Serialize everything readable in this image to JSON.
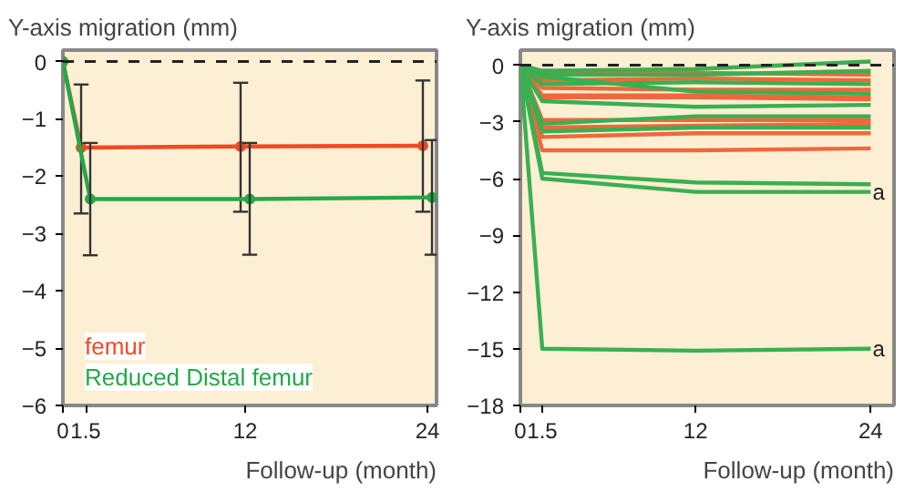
{
  "chart_data": [
    {
      "type": "line",
      "title": "Y-axis migration (mm)",
      "xlabel": "Follow-up (month)",
      "xlim": [
        0,
        24.6
      ],
      "ylim": [
        -6,
        0.2
      ],
      "xticks": [
        0,
        1.5,
        12,
        24
      ],
      "yticks": [
        {
          "value": -6,
          "label": "−6"
        },
        {
          "value": -5,
          "label": "−5"
        },
        {
          "value": -4,
          "label": "−4"
        },
        {
          "value": -3,
          "label": "−3"
        },
        {
          "value": -2,
          "label": "−2"
        },
        {
          "value": -1,
          "label": "−1"
        },
        0
      ],
      "grid": false,
      "marker": "circle",
      "legend": "bottom left",
      "ref_lines": [
        {
          "axis": "y",
          "value": 0,
          "color": "#222222",
          "line_style": "dashed"
        }
      ],
      "series": [
        {
          "name": "femur",
          "color": "#f04a23",
          "x": [
            0,
            1.2,
            11.7,
            23.7
          ],
          "values": [
            0,
            -1.5,
            -1.48,
            -1.47
          ],
          "errors": [
            null,
            [
              -2.65,
              -0.4
            ],
            [
              -2.62,
              -0.37
            ],
            [
              -2.62,
              -0.33
            ]
          ]
        },
        {
          "name": "Reduced Distal femur",
          "color": "#23a84a",
          "x": [
            0,
            1.8,
            12.3,
            24.3
          ],
          "values": [
            0,
            -2.4,
            -2.4,
            -2.37
          ],
          "errors": [
            null,
            [
              -3.38,
              -1.42
            ],
            [
              -3.37,
              -1.42
            ],
            [
              -3.37,
              -1.37
            ]
          ]
        }
      ]
    },
    {
      "type": "line",
      "title": "Y-axis migration (mm)",
      "xlabel": "Follow-up (month)",
      "x": [
        0,
        1.5,
        12,
        24
      ],
      "xlim": [
        0,
        25.6
      ],
      "ylim": [
        -18,
        0.8
      ],
      "xticks": [
        0,
        1.5,
        12,
        24
      ],
      "yticks": [
        {
          "value": -18,
          "label": "−18"
        },
        {
          "value": -15,
          "label": "−15"
        },
        {
          "value": -12,
          "label": "−12"
        },
        {
          "value": -9,
          "label": "−9"
        },
        {
          "value": -6,
          "label": "−6"
        },
        {
          "value": -3,
          "label": "−3"
        },
        0
      ],
      "grid": false,
      "ref_lines": [
        {
          "axis": "y",
          "value": 0,
          "color": "#222222",
          "line_style": "dashed"
        }
      ],
      "annotations": [
        {
          "text": "a",
          "x": 24,
          "y": -6.7
        },
        {
          "text": "a",
          "x": 24,
          "y": -15
        }
      ],
      "series": [
        {
          "color": "#f0683a",
          "values": [
            0,
            -0.3,
            -0.4,
            -0.5
          ]
        },
        {
          "color": "#f0683a",
          "values": [
            0,
            -0.8,
            -0.7,
            -0.8
          ]
        },
        {
          "color": "#f0683a",
          "values": [
            0,
            -1.2,
            -1.3,
            -1.3
          ]
        },
        {
          "color": "#f0683a",
          "values": [
            0,
            -1.6,
            -1.6,
            -1.7
          ]
        },
        {
          "color": "#f0683a",
          "values": [
            0,
            -1.7,
            -1.7,
            -1.8
          ]
        },
        {
          "color": "#f0683a",
          "values": [
            0,
            -2.9,
            -2.9,
            -2.9
          ]
        },
        {
          "color": "#f0683a",
          "values": [
            0,
            -3.3,
            -3.2,
            -3.1
          ]
        },
        {
          "color": "#f0683a",
          "values": [
            0,
            -3.8,
            -3.6,
            -3.6
          ]
        },
        {
          "color": "#f0683a",
          "values": [
            0,
            -4.5,
            -4.5,
            -4.4
          ]
        },
        {
          "color": "#3aaf52",
          "values": [
            0,
            -0.3,
            -0.2,
            0.2
          ]
        },
        {
          "color": "#3aaf52",
          "values": [
            0,
            -0.5,
            -0.5,
            -0.3
          ]
        },
        {
          "color": "#3aaf52",
          "values": [
            0,
            -0.6,
            -1.4,
            -1.5
          ]
        },
        {
          "color": "#3aaf52",
          "values": [
            0,
            -1.0,
            -0.9,
            -1.0
          ]
        },
        {
          "color": "#3aaf52",
          "values": [
            0,
            -1.9,
            -2.2,
            -2.1
          ]
        },
        {
          "color": "#3aaf52",
          "values": [
            0,
            -3.1,
            -2.7,
            -2.7
          ]
        },
        {
          "color": "#3aaf52",
          "values": [
            0,
            -3.5,
            -3.3,
            -3.3
          ]
        },
        {
          "color": "#3aaf52",
          "values": [
            0,
            -5.7,
            -6.2,
            -6.3
          ]
        },
        {
          "color": "#3aaf52",
          "values": [
            0,
            -6.0,
            -6.7,
            -6.7
          ]
        },
        {
          "color": "#3aaf52",
          "values": [
            0,
            -15.0,
            -15.1,
            -15.0
          ]
        }
      ]
    }
  ]
}
